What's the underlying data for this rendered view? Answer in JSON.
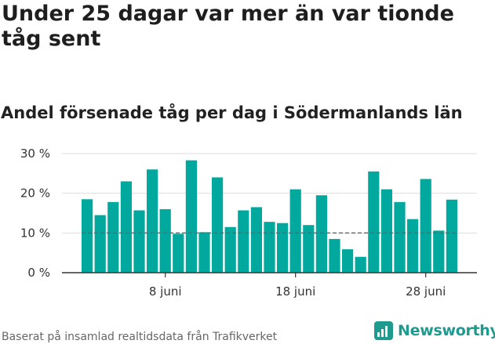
{
  "title": "Under 25 dagar var mer än var tionde tåg sent",
  "subtitle": "Andel försenade tåg per dag i Södermanlands län",
  "source": "Baserat på insamlad realtidsdata från Trafikverket",
  "brand": {
    "name": "Newsworthy",
    "color": "#1f9a8f",
    "icon": "chart-logo-icon"
  },
  "colors": {
    "bar": "#00a89d",
    "grid": "#dddddd",
    "axis": "#333333",
    "reference": "#666666"
  },
  "chart_data": {
    "type": "bar",
    "categories": [
      "2 juni",
      "3 juni",
      "4 juni",
      "5 juni",
      "6 juni",
      "7 juni",
      "8 juni",
      "9 juni",
      "10 juni",
      "11 juni",
      "12 juni",
      "13 juni",
      "14 juni",
      "15 juni",
      "16 juni",
      "17 juni",
      "18 juni",
      "19 juni",
      "20 juni",
      "21 juni",
      "22 juni",
      "23 juni",
      "24 juni",
      "25 juni",
      "26 juni",
      "27 juni",
      "28 juni",
      "29 juni",
      "30 juni"
    ],
    "values": [
      18.5,
      14.5,
      17.8,
      23,
      15.7,
      26,
      16,
      9.8,
      28.3,
      10.2,
      24,
      11.5,
      15.7,
      16.5,
      12.8,
      12.5,
      21,
      12,
      19.5,
      8.5,
      5.9,
      4,
      25.5,
      21,
      17.8,
      13.5,
      23.6,
      10.6,
      18.4
    ],
    "yticks": [
      0,
      10,
      20,
      30
    ],
    "ytick_labels": [
      "0 %",
      "10 %",
      "20 %",
      "30 %"
    ],
    "xtick_labels": [
      {
        "index": 6,
        "label": "8 juni"
      },
      {
        "index": 16,
        "label": "18 juni"
      },
      {
        "index": 26,
        "label": "28 juni"
      }
    ],
    "reference_line": 10,
    "ylim": [
      0,
      30
    ],
    "grid": true,
    "legend": "none"
  }
}
